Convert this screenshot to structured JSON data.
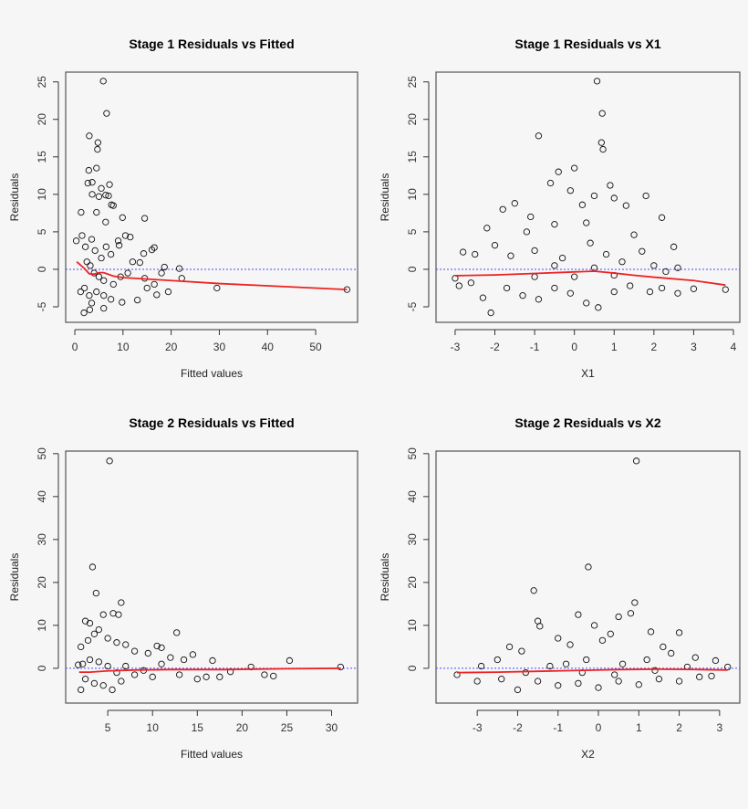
{
  "chart_data": [
    {
      "type": "scatter",
      "title": "Stage 1 Residuals vs Fitted",
      "xlabel": "Fitted values",
      "ylabel": "Residuals",
      "xlim": [
        -1.9,
        58.7
      ],
      "ylim": [
        -7.07,
        26.3
      ],
      "xticks": [
        0,
        10,
        20,
        30,
        40,
        50
      ],
      "yticks": [
        -5,
        0,
        5,
        10,
        15,
        20,
        25
      ],
      "reference_line": 0,
      "points": [
        [
          5.9,
          25.1
        ],
        [
          6.6,
          20.8
        ],
        [
          3.0,
          17.8
        ],
        [
          4.8,
          16.9
        ],
        [
          4.7,
          16.0
        ],
        [
          4.5,
          13.5
        ],
        [
          2.9,
          13.2
        ],
        [
          2.7,
          11.5
        ],
        [
          3.6,
          11.6
        ],
        [
          7.2,
          11.3
        ],
        [
          5.5,
          10.8
        ],
        [
          6.4,
          9.9
        ],
        [
          7.0,
          9.8
        ],
        [
          3.6,
          10.0
        ],
        [
          5.0,
          9.7
        ],
        [
          4.5,
          7.6
        ],
        [
          1.3,
          7.6
        ],
        [
          7.6,
          8.6
        ],
        [
          8.0,
          8.5
        ],
        [
          9.9,
          6.9
        ],
        [
          14.5,
          6.8
        ],
        [
          6.4,
          6.3
        ],
        [
          10.5,
          4.5
        ],
        [
          11.5,
          4.3
        ],
        [
          0.3,
          3.8
        ],
        [
          1.5,
          4.5
        ],
        [
          2.2,
          3.0
        ],
        [
          3.5,
          4.0
        ],
        [
          4.2,
          2.5
        ],
        [
          5.5,
          1.5
        ],
        [
          6.5,
          3.0
        ],
        [
          7.5,
          2.0
        ],
        [
          9.0,
          3.8
        ],
        [
          9.2,
          3.2
        ],
        [
          14.3,
          2.1
        ],
        [
          16.0,
          2.6
        ],
        [
          16.5,
          2.9
        ],
        [
          2.5,
          1.0
        ],
        [
          3.2,
          0.5
        ],
        [
          4.0,
          -0.5
        ],
        [
          5.0,
          -1.0
        ],
        [
          6.0,
          -1.5
        ],
        [
          8.0,
          -2.0
        ],
        [
          9.5,
          -1.0
        ],
        [
          11.0,
          -0.5
        ],
        [
          12.0,
          1.0
        ],
        [
          13.5,
          0.9
        ],
        [
          2.0,
          -2.5
        ],
        [
          3.0,
          -3.5
        ],
        [
          3.5,
          -4.5
        ],
        [
          4.5,
          -3.0
        ],
        [
          6.0,
          -3.5
        ],
        [
          7.5,
          -4.0
        ],
        [
          9.8,
          -4.4
        ],
        [
          13.0,
          -4.1
        ],
        [
          1.9,
          -5.8
        ],
        [
          3.1,
          -5.4
        ],
        [
          6.0,
          -5.2
        ],
        [
          1.2,
          -3.0
        ],
        [
          18.0,
          -0.5
        ],
        [
          18.6,
          0.3
        ],
        [
          21.7,
          0.1
        ],
        [
          22.2,
          -1.2
        ],
        [
          19.4,
          -3.0
        ],
        [
          17.0,
          -3.4
        ],
        [
          15.0,
          -2.5
        ],
        [
          16.5,
          -2.0
        ],
        [
          14.5,
          -1.2
        ],
        [
          29.5,
          -2.5
        ],
        [
          56.5,
          -2.7
        ]
      ],
      "smooth": [
        [
          0.4,
          1.0
        ],
        [
          2,
          0.1
        ],
        [
          3,
          -0.6
        ],
        [
          4,
          -0.65
        ],
        [
          5,
          -0.45
        ],
        [
          6,
          -0.45
        ],
        [
          8,
          -0.9
        ],
        [
          10,
          -1.1
        ],
        [
          15,
          -1.3
        ],
        [
          20,
          -1.5
        ],
        [
          30,
          -1.9
        ],
        [
          40,
          -2.2
        ],
        [
          56.5,
          -2.7
        ]
      ]
    },
    {
      "type": "scatter",
      "title": "Stage 1 Residuals vs X1",
      "xlabel": "X1",
      "ylabel": "Residuals",
      "xlim": [
        -3.48,
        4.16
      ],
      "ylim": [
        -7.07,
        26.3
      ],
      "xticks": [
        -3,
        -2,
        -1,
        0,
        1,
        2,
        3,
        4
      ],
      "yticks": [
        -5,
        0,
        5,
        10,
        15,
        20,
        25
      ],
      "reference_line": 0,
      "points": [
        [
          0.57,
          25.1
        ],
        [
          0.7,
          20.8
        ],
        [
          -0.9,
          17.8
        ],
        [
          0.68,
          16.9
        ],
        [
          0.72,
          16.0
        ],
        [
          0.0,
          13.5
        ],
        [
          -0.4,
          13.0
        ],
        [
          -0.6,
          11.5
        ],
        [
          0.9,
          11.2
        ],
        [
          -0.1,
          10.5
        ],
        [
          0.5,
          9.8
        ],
        [
          1.0,
          9.5
        ],
        [
          1.8,
          9.8
        ],
        [
          -1.5,
          8.8
        ],
        [
          -1.8,
          8.0
        ],
        [
          0.2,
          8.6
        ],
        [
          1.3,
          8.5
        ],
        [
          -1.1,
          7.0
        ],
        [
          2.2,
          6.9
        ],
        [
          -2.2,
          5.5
        ],
        [
          -1.2,
          5.0
        ],
        [
          -0.5,
          6.0
        ],
        [
          0.3,
          6.2
        ],
        [
          1.5,
          4.6
        ],
        [
          2.5,
          3.0
        ],
        [
          -2.8,
          2.3
        ],
        [
          -2.5,
          2.0
        ],
        [
          -2.0,
          3.2
        ],
        [
          -1.6,
          1.8
        ],
        [
          -1.0,
          2.5
        ],
        [
          -0.3,
          1.5
        ],
        [
          0.4,
          3.5
        ],
        [
          0.8,
          2.0
        ],
        [
          1.2,
          1.0
        ],
        [
          1.7,
          2.4
        ],
        [
          2.0,
          0.5
        ],
        [
          2.3,
          -0.3
        ],
        [
          2.6,
          0.2
        ],
        [
          -3.0,
          -1.2
        ],
        [
          -2.9,
          -2.2
        ],
        [
          -2.6,
          -1.8
        ],
        [
          -2.3,
          -3.8
        ],
        [
          -2.1,
          -5.8
        ],
        [
          -1.7,
          -2.5
        ],
        [
          -1.3,
          -3.5
        ],
        [
          -0.9,
          -4.0
        ],
        [
          -0.5,
          -2.5
        ],
        [
          -0.1,
          -3.2
        ],
        [
          0.3,
          -4.5
        ],
        [
          0.6,
          -5.1
        ],
        [
          1.0,
          -3.0
        ],
        [
          1.4,
          -2.2
        ],
        [
          1.9,
          -3.0
        ],
        [
          2.2,
          -2.5
        ],
        [
          2.6,
          -3.2
        ],
        [
          3.0,
          -2.6
        ],
        [
          3.8,
          -2.7
        ],
        [
          -1.0,
          -1.0
        ],
        [
          0.0,
          -1.0
        ],
        [
          1.0,
          -0.8
        ],
        [
          -0.5,
          0.5
        ],
        [
          0.5,
          0.2
        ]
      ],
      "smooth": [
        [
          -3,
          -0.85
        ],
        [
          -2,
          -0.75
        ],
        [
          -1,
          -0.55
        ],
        [
          0,
          -0.35
        ],
        [
          0.5,
          -0.25
        ],
        [
          1,
          -0.5
        ],
        [
          1.5,
          -0.8
        ],
        [
          2,
          -1.05
        ],
        [
          3,
          -1.5
        ],
        [
          3.8,
          -2.1
        ]
      ]
    },
    {
      "type": "scatter",
      "title": "Stage 2 Residuals vs Fitted",
      "xlabel": "Fitted values",
      "ylabel": "Residuals",
      "xlim": [
        0.3,
        32.9
      ],
      "ylim": [
        -8.1,
        50.6
      ],
      "xticks": [
        5,
        10,
        15,
        20,
        25,
        30
      ],
      "yticks": [
        0,
        10,
        20,
        30,
        40,
        50
      ],
      "reference_line": 0,
      "points": [
        [
          5.2,
          48.3
        ],
        [
          3.3,
          23.6
        ],
        [
          3.7,
          17.5
        ],
        [
          6.5,
          15.3
        ],
        [
          2.5,
          11.0
        ],
        [
          3.0,
          10.5
        ],
        [
          4.5,
          12.5
        ],
        [
          5.6,
          12.8
        ],
        [
          6.2,
          12.5
        ],
        [
          4.0,
          9.0
        ],
        [
          3.5,
          8.0
        ],
        [
          2.0,
          5.0
        ],
        [
          2.8,
          6.5
        ],
        [
          5.0,
          7.0
        ],
        [
          6.0,
          6.0
        ],
        [
          7.0,
          5.5
        ],
        [
          8.0,
          4.0
        ],
        [
          9.5,
          3.5
        ],
        [
          10.5,
          5.2
        ],
        [
          11.0,
          4.8
        ],
        [
          12.7,
          8.3
        ],
        [
          12.0,
          2.5
        ],
        [
          13.5,
          2.0
        ],
        [
          14.5,
          3.2
        ],
        [
          2.2,
          1.0
        ],
        [
          3.0,
          2.0
        ],
        [
          4.0,
          1.5
        ],
        [
          5.0,
          0.5
        ],
        [
          6.0,
          -1.0
        ],
        [
          7.0,
          0.5
        ],
        [
          8.0,
          -1.5
        ],
        [
          9.0,
          -0.5
        ],
        [
          10.0,
          -2.0
        ],
        [
          11.0,
          1.0
        ],
        [
          2.5,
          -2.5
        ],
        [
          3.5,
          -3.5
        ],
        [
          4.5,
          -4.0
        ],
        [
          5.5,
          -5.0
        ],
        [
          2.0,
          -5.0
        ],
        [
          1.7,
          0.8
        ],
        [
          6.5,
          -3.0
        ],
        [
          13.0,
          -1.5
        ],
        [
          15.0,
          -2.5
        ],
        [
          16.0,
          -2.0
        ],
        [
          16.7,
          1.8
        ],
        [
          18.7,
          -0.8
        ],
        [
          17.5,
          -2.0
        ],
        [
          21.0,
          0.3
        ],
        [
          22.5,
          -1.5
        ],
        [
          23.5,
          -1.8
        ],
        [
          25.3,
          1.8
        ],
        [
          31.0,
          0.3
        ]
      ],
      "smooth": [
        [
          1.8,
          -0.9
        ],
        [
          3,
          -0.9
        ],
        [
          5,
          -0.6
        ],
        [
          8,
          -0.4
        ],
        [
          12,
          -0.3
        ],
        [
          18,
          -0.3
        ],
        [
          25,
          -0.1
        ],
        [
          31,
          0.0
        ]
      ]
    },
    {
      "type": "scatter",
      "title": "Stage 2 Residuals vs X2",
      "xlabel": "X2",
      "ylabel": "Residuals",
      "xlim": [
        -4.02,
        3.5
      ],
      "ylim": [
        -8.1,
        50.6
      ],
      "xticks": [
        -3,
        -2,
        -1,
        0,
        1,
        2,
        3
      ],
      "yticks": [
        0,
        10,
        20,
        30,
        40,
        50
      ],
      "reference_line": 0,
      "points": [
        [
          0.94,
          48.3
        ],
        [
          -0.25,
          23.6
        ],
        [
          -1.6,
          18.1
        ],
        [
          0.9,
          15.3
        ],
        [
          -1.5,
          11.0
        ],
        [
          -1.45,
          9.8
        ],
        [
          -0.5,
          12.5
        ],
        [
          0.5,
          12.0
        ],
        [
          0.8,
          12.8
        ],
        [
          1.3,
          8.5
        ],
        [
          2.0,
          8.3
        ],
        [
          -0.1,
          10.0
        ],
        [
          0.3,
          8.0
        ],
        [
          -1.0,
          7.0
        ],
        [
          -0.7,
          5.5
        ],
        [
          0.1,
          6.5
        ],
        [
          1.6,
          5.0
        ],
        [
          -2.2,
          5.0
        ],
        [
          -1.9,
          4.0
        ],
        [
          -2.5,
          2.0
        ],
        [
          -2.9,
          0.5
        ],
        [
          -3.5,
          -1.5
        ],
        [
          -3.0,
          -3.0
        ],
        [
          -2.4,
          -2.5
        ],
        [
          -2.0,
          -5.0
        ],
        [
          -1.5,
          -3.0
        ],
        [
          -1.0,
          -4.0
        ],
        [
          -0.5,
          -3.5
        ],
        [
          0.0,
          -4.5
        ],
        [
          0.5,
          -3.0
        ],
        [
          1.0,
          -3.8
        ],
        [
          1.5,
          -2.5
        ],
        [
          2.0,
          -3.0
        ],
        [
          2.5,
          -2.0
        ],
        [
          2.8,
          -1.8
        ],
        [
          3.2,
          0.3
        ],
        [
          2.9,
          1.8
        ],
        [
          2.4,
          2.5
        ],
        [
          1.8,
          3.5
        ],
        [
          1.2,
          2.0
        ],
        [
          0.6,
          1.0
        ],
        [
          -0.3,
          2.0
        ],
        [
          -0.8,
          1.0
        ],
        [
          -1.2,
          0.5
        ],
        [
          -1.8,
          -1.0
        ],
        [
          -0.4,
          -1.0
        ],
        [
          0.4,
          -1.5
        ],
        [
          1.4,
          -0.5
        ],
        [
          2.2,
          0.3
        ]
      ],
      "smooth": [
        [
          -3.5,
          -1.0
        ],
        [
          -2.5,
          -0.9
        ],
        [
          -1.5,
          -0.7
        ],
        [
          -0.5,
          -0.5
        ],
        [
          0.5,
          -0.3
        ],
        [
          1.5,
          -0.2
        ],
        [
          2.5,
          -0.3
        ],
        [
          3.2,
          -0.4
        ]
      ]
    }
  ]
}
